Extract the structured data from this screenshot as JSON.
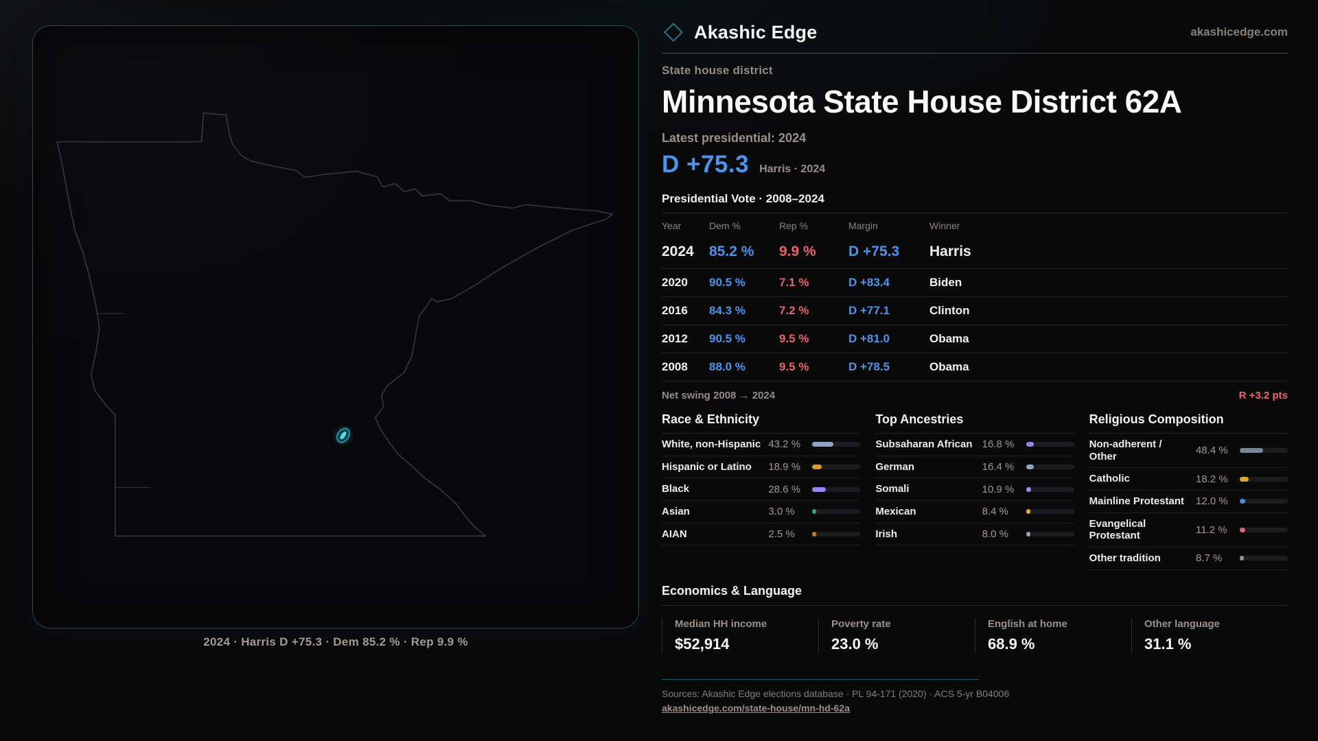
{
  "brand": {
    "name": "Akashic Edge",
    "domain": "akashicedge.com"
  },
  "accents": {
    "teal_border": "#175261",
    "teal_rule": "#1d5f6c",
    "dem_blue": "#4c95ec",
    "rep_red": "#e8636e",
    "marker_cyan": "#4fdcf0"
  },
  "page": {
    "kicker": "State house district",
    "title": "Minnesota State House District 62A",
    "latest_label": "Latest presidential: 2024",
    "headline_margin": "D +75.3",
    "headline_sub": "Harris · 2024"
  },
  "map": {
    "caption": "2024 · Harris D +75.3 · Dem 85.2 % · Rep 9.9 %"
  },
  "vote_table": {
    "title": "Presidential Vote · 2008–2024",
    "columns": [
      "Year",
      "Dem %",
      "Rep %",
      "Margin",
      "Winner"
    ],
    "rows": [
      {
        "year": "2024",
        "dem": "85.2 %",
        "rep": "9.9 %",
        "margin": "D +75.3",
        "winner": "Harris"
      },
      {
        "year": "2020",
        "dem": "90.5 %",
        "rep": "7.1 %",
        "margin": "D +83.4",
        "winner": "Biden"
      },
      {
        "year": "2016",
        "dem": "84.3 %",
        "rep": "7.2 %",
        "margin": "D +77.1",
        "winner": "Clinton"
      },
      {
        "year": "2012",
        "dem": "90.5 %",
        "rep": "9.5 %",
        "margin": "D +81.0",
        "winner": "Obama"
      },
      {
        "year": "2008",
        "dem": "88.0 %",
        "rep": "9.5 %",
        "margin": "D +78.5",
        "winner": "Obama"
      }
    ],
    "net_swing_label": "Net swing 2008 → 2024",
    "net_swing_value": "R +3.2 pts"
  },
  "demographics": [
    {
      "title": "Race & Ethnicity",
      "rows": [
        {
          "label": "White, non-Hispanic",
          "value": "43.2 %",
          "pct": 43.2,
          "color": "#8ea6c3"
        },
        {
          "label": "Hispanic or Latino",
          "value": "18.9 %",
          "pct": 18.9,
          "color": "#dd9a31"
        },
        {
          "label": "Black",
          "value": "28.6 %",
          "pct": 28.6,
          "color": "#9487ec"
        },
        {
          "label": "Asian",
          "value": "3.0 %",
          "pct": 3.0,
          "color": "#2aa77e"
        },
        {
          "label": "AIAN",
          "value": "2.5 %",
          "pct": 2.5,
          "color": "#c97820"
        }
      ]
    },
    {
      "title": "Top Ancestries",
      "rows": [
        {
          "label": "Subsaharan African",
          "value": "16.8 %",
          "pct": 16.8,
          "color": "#9487ec"
        },
        {
          "label": "German",
          "value": "16.4 %",
          "pct": 16.4,
          "color": "#8ea6c3"
        },
        {
          "label": "Somali",
          "value": "10.9 %",
          "pct": 10.9,
          "color": "#9f8ff2"
        },
        {
          "label": "Mexican",
          "value": "8.4 %",
          "pct": 8.4,
          "color": "#e8a93c"
        },
        {
          "label": "Irish",
          "value": "8.0 %",
          "pct": 8.0,
          "color": "#8ea6c3"
        }
      ]
    },
    {
      "title": "Religious Composition",
      "rows": [
        {
          "label": "Non-adherent / Other",
          "value": "48.4 %",
          "pct": 48.4,
          "color": "#76879e"
        },
        {
          "label": "Catholic",
          "value": "18.2 %",
          "pct": 18.2,
          "color": "#dfa928"
        },
        {
          "label": "Mainline Protestant",
          "value": "12.0 %",
          "pct": 12.0,
          "color": "#4a8fe0"
        },
        {
          "label": "Evangelical Protestant",
          "value": "11.2 %",
          "pct": 11.2,
          "color": "#e2636b"
        },
        {
          "label": "Other tradition",
          "value": "8.7 %",
          "pct": 8.7,
          "color": "#8b929c"
        }
      ]
    }
  ],
  "economics": {
    "title": "Economics & Language",
    "stats": [
      {
        "label": "Median HH income",
        "value": "$52,914"
      },
      {
        "label": "Poverty rate",
        "value": "23.0 %"
      },
      {
        "label": "English at home",
        "value": "68.9 %"
      },
      {
        "label": "Other language",
        "value": "31.1 %"
      }
    ]
  },
  "footer": {
    "sources": "Sources: Akashic Edge elections database · PL 94-171 (2020) · ACS 5-yr B04006",
    "permalink": "akashicedge.com/state-house/mn-hd-62a"
  }
}
